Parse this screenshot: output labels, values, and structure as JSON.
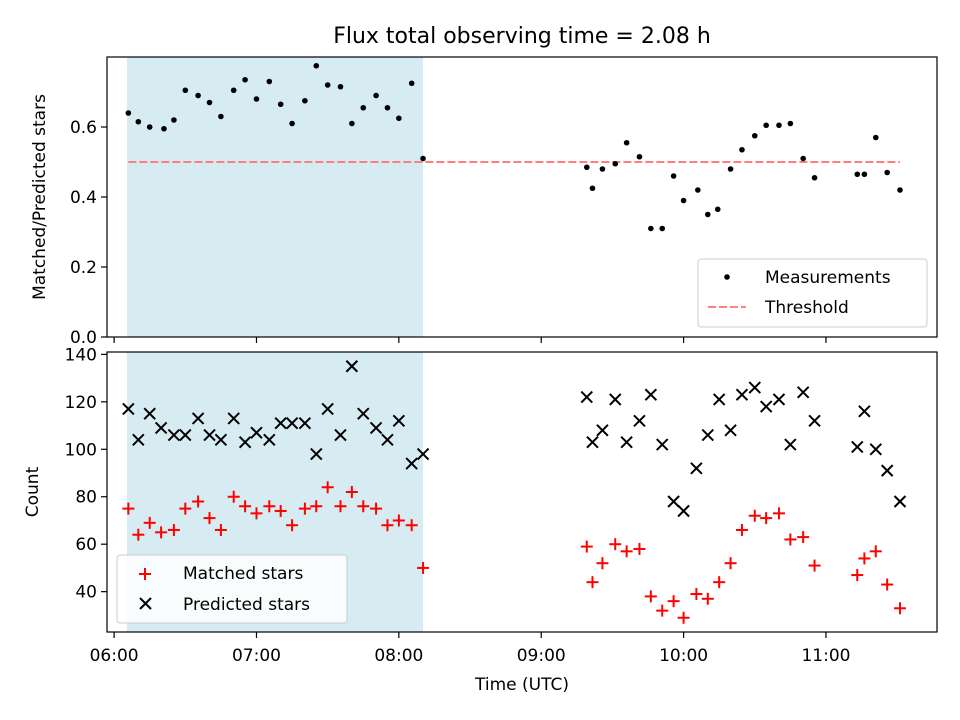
{
  "title": "Flux total observing time = 2.08 h",
  "xlabel": "Time (UTC)",
  "x_ticks": [
    "06:00",
    "07:00",
    "08:00",
    "09:00",
    "10:00",
    "11:00"
  ],
  "x_tick_hours": [
    6,
    7,
    8,
    9,
    10,
    11
  ],
  "x_range_hours": [
    5.95,
    11.78
  ],
  "shaded_span_hours": [
    6.09,
    8.17
  ],
  "colors": {
    "shade": "#add8e6",
    "threshold": "#ff7f7f",
    "matched": "#ff0000",
    "predicted": "#000000",
    "measurements": "#000000"
  },
  "chart_data": [
    {
      "type": "scatter",
      "ylabel": "Matched/Predicted stars",
      "ylim": [
        0,
        0.8
      ],
      "y_ticks": [
        0.0,
        0.2,
        0.4,
        0.6
      ],
      "y_tick_labels": [
        "0.0",
        "0.2",
        "0.4",
        "0.6"
      ],
      "legend_position": "lower-right",
      "series": [
        {
          "name": "Measurements",
          "marker": "dot",
          "x": [
            6.1,
            6.17,
            6.25,
            6.35,
            6.42,
            6.5,
            6.59,
            6.67,
            6.75,
            6.84,
            6.92,
            7.0,
            7.09,
            7.17,
            7.25,
            7.34,
            7.42,
            7.5,
            7.59,
            7.67,
            7.75,
            7.84,
            7.92,
            8.0,
            8.09,
            8.17,
            9.32,
            9.36,
            9.43,
            9.52,
            9.6,
            9.69,
            9.77,
            9.85,
            9.93,
            10.0,
            10.1,
            10.17,
            10.24,
            10.33,
            10.41,
            10.5,
            10.58,
            10.67,
            10.75,
            10.84,
            10.92,
            11.22,
            11.27,
            11.35,
            11.43,
            11.52
          ],
          "y": [
            0.64,
            0.615,
            0.6,
            0.595,
            0.62,
            0.705,
            0.69,
            0.67,
            0.63,
            0.705,
            0.735,
            0.68,
            0.73,
            0.665,
            0.61,
            0.675,
            0.775,
            0.72,
            0.715,
            0.61,
            0.655,
            0.69,
            0.655,
            0.625,
            0.725,
            0.51,
            0.485,
            0.425,
            0.48,
            0.495,
            0.555,
            0.515,
            0.31,
            0.31,
            0.46,
            0.39,
            0.42,
            0.35,
            0.365,
            0.48,
            0.535,
            0.575,
            0.605,
            0.605,
            0.61,
            0.51,
            0.455,
            0.465,
            0.465,
            0.57,
            0.47,
            0.42
          ]
        },
        {
          "name": "Threshold",
          "type": "line",
          "style": "dashed",
          "x": [
            6.1,
            11.52
          ],
          "y": [
            0.5,
            0.5
          ]
        }
      ]
    },
    {
      "type": "scatter",
      "ylabel": "Count",
      "ylim": [
        23,
        141
      ],
      "y_ticks": [
        40,
        60,
        80,
        100,
        120,
        140
      ],
      "y_tick_labels": [
        "40",
        "60",
        "80",
        "100",
        "120",
        "140"
      ],
      "legend_position": "lower-left",
      "series": [
        {
          "name": "Matched stars",
          "marker": "plus",
          "x": [
            6.1,
            6.17,
            6.25,
            6.33,
            6.42,
            6.5,
            6.59,
            6.67,
            6.75,
            6.84,
            6.92,
            7.0,
            7.09,
            7.17,
            7.25,
            7.34,
            7.42,
            7.5,
            7.59,
            7.67,
            7.75,
            7.84,
            7.92,
            8.0,
            8.09,
            8.17,
            9.32,
            9.36,
            9.43,
            9.52,
            9.6,
            9.69,
            9.77,
            9.85,
            9.93,
            10.0,
            10.09,
            10.17,
            10.25,
            10.33,
            10.41,
            10.5,
            10.58,
            10.67,
            10.75,
            10.84,
            10.92,
            11.22,
            11.27,
            11.35,
            11.43,
            11.52
          ],
          "y": [
            75,
            64,
            69,
            65,
            66,
            75,
            78,
            71,
            66,
            80,
            76,
            73,
            76,
            74,
            68,
            75,
            76,
            84,
            76,
            82,
            76,
            75,
            68,
            70,
            68,
            50,
            59,
            44,
            52,
            60,
            57,
            58,
            38,
            32,
            36,
            29,
            39,
            37,
            44,
            52,
            66,
            72,
            71,
            73,
            62,
            63,
            51,
            47,
            54,
            57,
            43,
            33
          ]
        },
        {
          "name": "Predicted stars",
          "marker": "cross",
          "x": [
            6.1,
            6.17,
            6.25,
            6.33,
            6.42,
            6.5,
            6.59,
            6.67,
            6.75,
            6.84,
            6.92,
            7.0,
            7.09,
            7.17,
            7.25,
            7.34,
            7.42,
            7.5,
            7.59,
            7.67,
            7.75,
            7.84,
            7.92,
            8.0,
            8.09,
            8.17,
            9.32,
            9.36,
            9.43,
            9.52,
            9.6,
            9.69,
            9.77,
            9.85,
            9.93,
            10.0,
            10.09,
            10.17,
            10.25,
            10.33,
            10.41,
            10.5,
            10.58,
            10.67,
            10.75,
            10.84,
            10.92,
            11.22,
            11.27,
            11.35,
            11.43,
            11.52
          ],
          "y": [
            117,
            104,
            115,
            109,
            106,
            106,
            113,
            106,
            104,
            113,
            103,
            107,
            104,
            111,
            111,
            111,
            98,
            117,
            106,
            135,
            115,
            109,
            104,
            112,
            94,
            98,
            122,
            103,
            108,
            121,
            103,
            112,
            123,
            102,
            78,
            74,
            92,
            106,
            121,
            108,
            123,
            126,
            118,
            121,
            102,
            124,
            112,
            101,
            116,
            100,
            91,
            78
          ]
        }
      ]
    }
  ]
}
